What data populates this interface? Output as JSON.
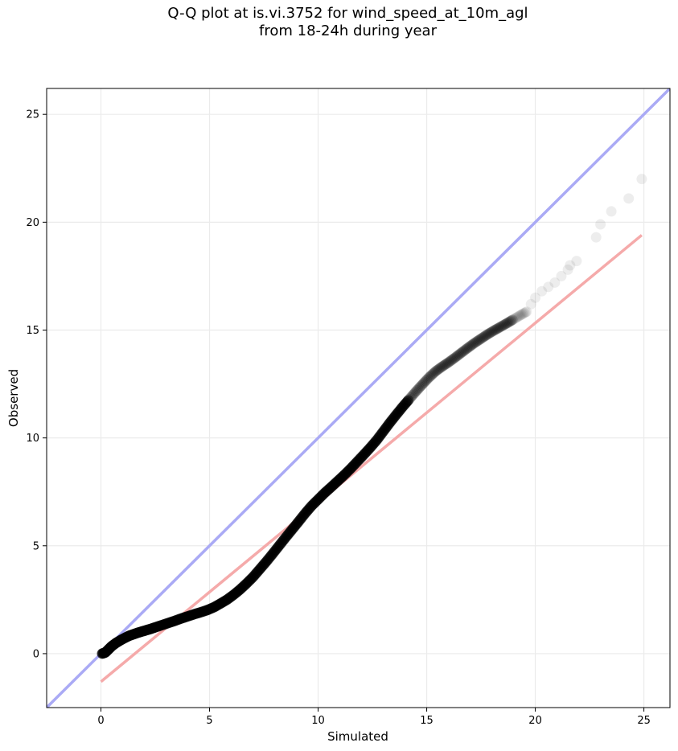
{
  "chart_data": {
    "type": "scatter",
    "title": "Q-Q plot at is.vi.3752 for wind_speed_at_10m_agl\nfrom 18-24h during year",
    "xlabel": "Simulated",
    "ylabel": "Observed",
    "xlim": [
      -2.5,
      26.2
    ],
    "ylim": [
      -2.5,
      26.2
    ],
    "xticks": [
      0,
      5,
      10,
      15,
      20,
      25
    ],
    "yticks": [
      0,
      5,
      10,
      15,
      20,
      25
    ],
    "xtick_labels": [
      "0",
      "5",
      "10",
      "15",
      "20",
      "25"
    ],
    "ytick_labels": [
      "0",
      "5",
      "10",
      "15",
      "20",
      "25"
    ],
    "grid": true,
    "reference_line": {
      "color": "#aaaaf5",
      "x": [
        -2.5,
        26.2
      ],
      "y": [
        -2.5,
        26.2
      ]
    },
    "fit_line": {
      "color": "#f5aaaa",
      "x": [
        0.0,
        24.9
      ],
      "y": [
        -1.3,
        19.4
      ]
    },
    "series": [
      {
        "color": "#000000",
        "x": [
          0.05,
          0.2,
          0.35,
          0.5,
          0.7,
          0.9,
          1.1,
          1.3,
          1.5,
          1.7,
          1.9,
          2.1,
          2.3,
          2.5,
          2.8,
          3.1,
          3.4,
          3.7,
          4.0,
          4.3,
          4.6,
          4.9,
          5.2,
          5.5,
          5.8,
          6.1,
          6.4,
          6.7,
          7.0,
          7.3,
          7.6,
          7.9,
          8.2,
          8.5,
          8.8,
          9.1,
          9.4,
          9.7,
          10.0,
          10.3,
          10.6,
          10.9,
          11.2,
          11.5,
          11.8,
          12.1,
          12.4,
          12.7,
          13.0,
          13.3,
          13.6,
          13.9,
          14.2,
          14.5,
          14.8,
          15.1,
          15.4,
          15.7,
          16.0,
          16.3,
          16.6,
          16.9,
          17.2,
          17.5,
          17.8,
          18.1,
          18.4,
          18.7,
          19.0,
          19.3,
          19.6,
          19.8,
          20.0,
          20.3,
          20.6,
          20.9,
          21.2,
          21.5,
          21.6,
          21.9,
          22.8,
          23.0,
          23.5,
          24.3,
          24.9
        ],
        "y": [
          0.0,
          0.05,
          0.2,
          0.35,
          0.5,
          0.62,
          0.73,
          0.83,
          0.9,
          0.97,
          1.03,
          1.09,
          1.15,
          1.22,
          1.32,
          1.42,
          1.52,
          1.63,
          1.73,
          1.83,
          1.92,
          2.02,
          2.15,
          2.32,
          2.5,
          2.72,
          2.97,
          3.25,
          3.55,
          3.9,
          4.25,
          4.62,
          5.0,
          5.38,
          5.75,
          6.12,
          6.5,
          6.85,
          7.15,
          7.45,
          7.72,
          8.0,
          8.28,
          8.58,
          8.9,
          9.22,
          9.55,
          9.9,
          10.3,
          10.7,
          11.08,
          11.45,
          11.8,
          12.15,
          12.48,
          12.8,
          13.08,
          13.3,
          13.5,
          13.72,
          13.95,
          14.18,
          14.4,
          14.6,
          14.8,
          14.98,
          15.15,
          15.32,
          15.5,
          15.68,
          15.85,
          16.2,
          16.5,
          16.8,
          17.0,
          17.2,
          17.5,
          17.8,
          18.0,
          18.2,
          19.3,
          19.9,
          20.5,
          21.1,
          22.0
        ]
      }
    ]
  }
}
